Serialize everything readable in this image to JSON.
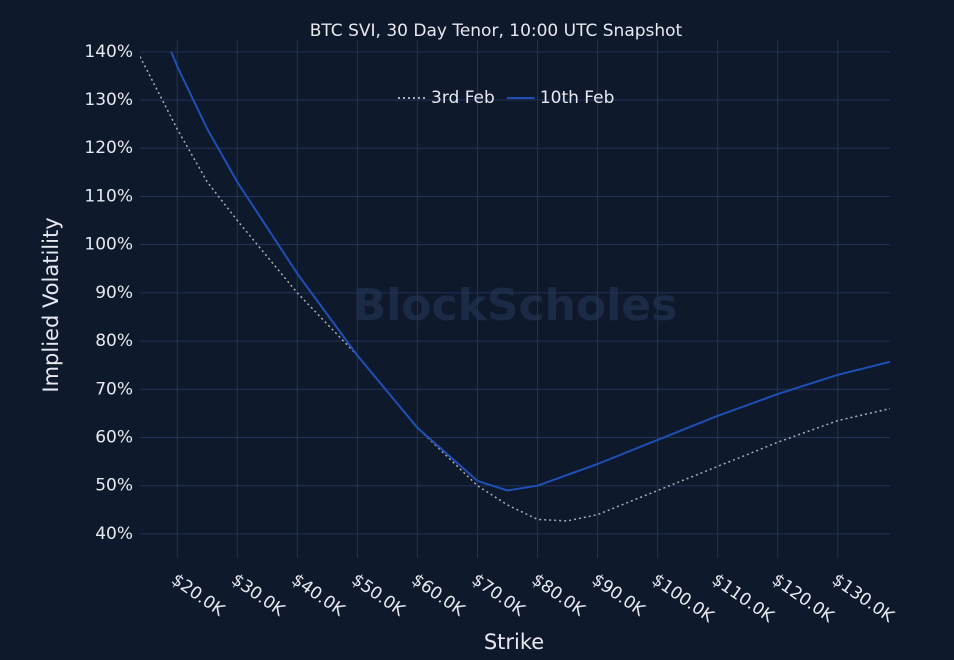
{
  "chart_data": {
    "type": "line",
    "title": "BTC SVI, 30 Day Tenor, 10:00 UTC Snapshot",
    "watermark": "BlockScholes",
    "x_label": "Strike",
    "y_label": "Implied Volatility",
    "xlim": [
      13800,
      138700
    ],
    "ylim": [
      35,
      141
    ],
    "xticks": [
      {
        "value": 20000,
        "label": "$20.0K"
      },
      {
        "value": 30000,
        "label": "$30.0K"
      },
      {
        "value": 40000,
        "label": "$40.0K"
      },
      {
        "value": 50000,
        "label": "$50.0K"
      },
      {
        "value": 60000,
        "label": "$60.0K"
      },
      {
        "value": 70000,
        "label": "$70.0K"
      },
      {
        "value": 80000,
        "label": "$80.0K"
      },
      {
        "value": 90000,
        "label": "$90.0K"
      },
      {
        "value": 100000,
        "label": "$100.0K"
      },
      {
        "value": 110000,
        "label": "$110.0K"
      },
      {
        "value": 120000,
        "label": "$120.0K"
      },
      {
        "value": 130000,
        "label": "$130.0K"
      }
    ],
    "yticks": [
      {
        "value": 40,
        "label": "40%"
      },
      {
        "value": 50,
        "label": "50%"
      },
      {
        "value": 60,
        "label": "60%"
      },
      {
        "value": 70,
        "label": "70%"
      },
      {
        "value": 80,
        "label": "80%"
      },
      {
        "value": 90,
        "label": "90%"
      },
      {
        "value": 100,
        "label": "100%"
      },
      {
        "value": 110,
        "label": "110%"
      },
      {
        "value": 120,
        "label": "120%"
      },
      {
        "value": 130,
        "label": "130%"
      },
      {
        "value": 140,
        "label": "140%"
      }
    ],
    "grid": true,
    "series": [
      {
        "name": "3rd Feb",
        "color": "#a9adb5",
        "dash": "dotted",
        "x": [
          13800,
          20000,
          25000,
          30000,
          40000,
          50000,
          60000,
          70000,
          75000,
          80000,
          85000,
          90000,
          100000,
          110000,
          120000,
          130000,
          138700
        ],
        "values": [
          139,
          124,
          113,
          105,
          90,
          77,
          62,
          50,
          46,
          43,
          42.7,
          44,
          49,
          54,
          59,
          63.5,
          66
        ]
      },
      {
        "name": "10th Feb",
        "color": "#1f4fb5",
        "dash": "solid",
        "x": [
          19000,
          20000,
          25000,
          30000,
          40000,
          50000,
          60000,
          70000,
          75000,
          80000,
          90000,
          100000,
          110000,
          120000,
          130000,
          138700
        ],
        "values": [
          140,
          137,
          124,
          113,
          94,
          77,
          62,
          51,
          49,
          50,
          54.5,
          59.5,
          64.5,
          69,
          73,
          75.7
        ]
      }
    ]
  }
}
